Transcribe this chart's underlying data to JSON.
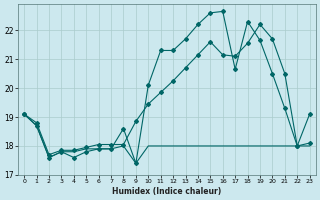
{
  "xlabel": "Humidex (Indice chaleur)",
  "bg_color": "#cce8ee",
  "grid_color": "#aacccc",
  "line_color": "#006666",
  "xlim": [
    -0.5,
    23.5
  ],
  "ylim": [
    17.0,
    22.9
  ],
  "yticks": [
    17,
    18,
    19,
    20,
    21,
    22
  ],
  "xticks": [
    0,
    1,
    2,
    3,
    4,
    5,
    6,
    7,
    8,
    9,
    10,
    11,
    12,
    13,
    14,
    15,
    16,
    17,
    18,
    19,
    20,
    21,
    22,
    23
  ],
  "line1_x": [
    0,
    1,
    2,
    3,
    4,
    5,
    6,
    7,
    8,
    9,
    10,
    11,
    12,
    13,
    14,
    15,
    16,
    17,
    18,
    19,
    20,
    21,
    22,
    23
  ],
  "line1_y": [
    19.1,
    18.7,
    17.6,
    17.8,
    17.8,
    17.9,
    17.9,
    17.9,
    18.0,
    17.4,
    18.0,
    18.0,
    18.0,
    18.0,
    18.0,
    18.0,
    18.0,
    18.0,
    18.0,
    18.0,
    18.0,
    18.0,
    18.0,
    18.0
  ],
  "line2_x": [
    0,
    1,
    2,
    3,
    4,
    5,
    6,
    7,
    8,
    9,
    10,
    11,
    12,
    13,
    14,
    15,
    16,
    17,
    18,
    19,
    20,
    21,
    22,
    23
  ],
  "line2_y": [
    19.1,
    18.7,
    17.6,
    17.8,
    17.6,
    17.8,
    17.9,
    17.9,
    18.6,
    17.4,
    20.1,
    21.3,
    21.3,
    21.7,
    22.2,
    22.6,
    22.65,
    20.65,
    22.3,
    21.65,
    20.5,
    19.3,
    18.0,
    19.1
  ],
  "line3_x": [
    0,
    1,
    2,
    3,
    4,
    5,
    6,
    7,
    8,
    9,
    10,
    11,
    12,
    13,
    14,
    15,
    16,
    17,
    18,
    19,
    20,
    21,
    22,
    23
  ],
  "line3_y": [
    19.1,
    18.8,
    17.7,
    17.85,
    17.85,
    17.95,
    18.05,
    18.05,
    18.05,
    18.85,
    19.45,
    19.85,
    20.25,
    20.7,
    21.15,
    21.6,
    21.15,
    21.1,
    21.55,
    22.2,
    21.7,
    20.5,
    18.0,
    18.1
  ]
}
